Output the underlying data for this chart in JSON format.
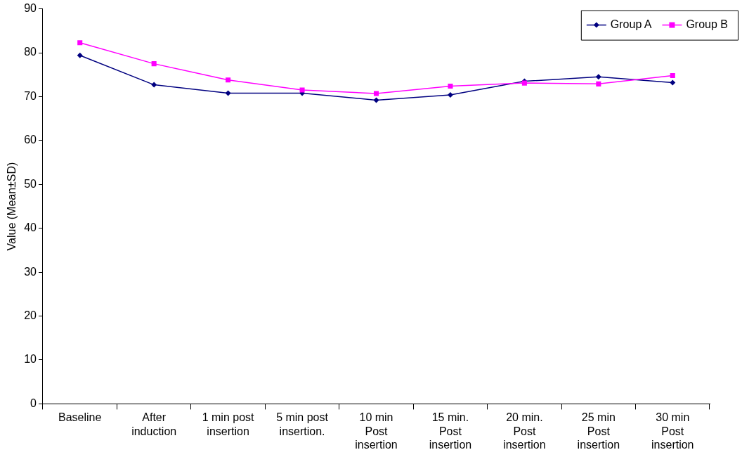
{
  "chart_data": {
    "type": "line",
    "ylabel": "Value (Mean±SD)",
    "categories": [
      "Baseline",
      "After\ninduction",
      "1 min post\ninsertion",
      "5 min post\ninsertion.",
      "10 min\nPost\ninsertion",
      "15 min.\nPost\ninsertion",
      "20 min.\nPost\ninsertion",
      "25 min\nPost\ninsertion",
      "30 min\nPost\ninsertion"
    ],
    "series": [
      {
        "name": "Group A",
        "color": "#000080",
        "marker": "diamond",
        "values": [
          79.4,
          72.7,
          70.8,
          70.8,
          69.2,
          70.4,
          73.5,
          74.5,
          73.2
        ]
      },
      {
        "name": "Group B",
        "color": "#ff00ff",
        "marker": "square",
        "values": [
          82.3,
          77.5,
          73.8,
          71.5,
          70.7,
          72.4,
          73.1,
          72.9,
          74.8
        ]
      }
    ],
    "ylim": [
      0,
      90
    ],
    "yticks": [
      0,
      10,
      20,
      30,
      40,
      50,
      60,
      70,
      80,
      90
    ],
    "grid": false,
    "legend": "top right",
    "line_style": "solid"
  }
}
